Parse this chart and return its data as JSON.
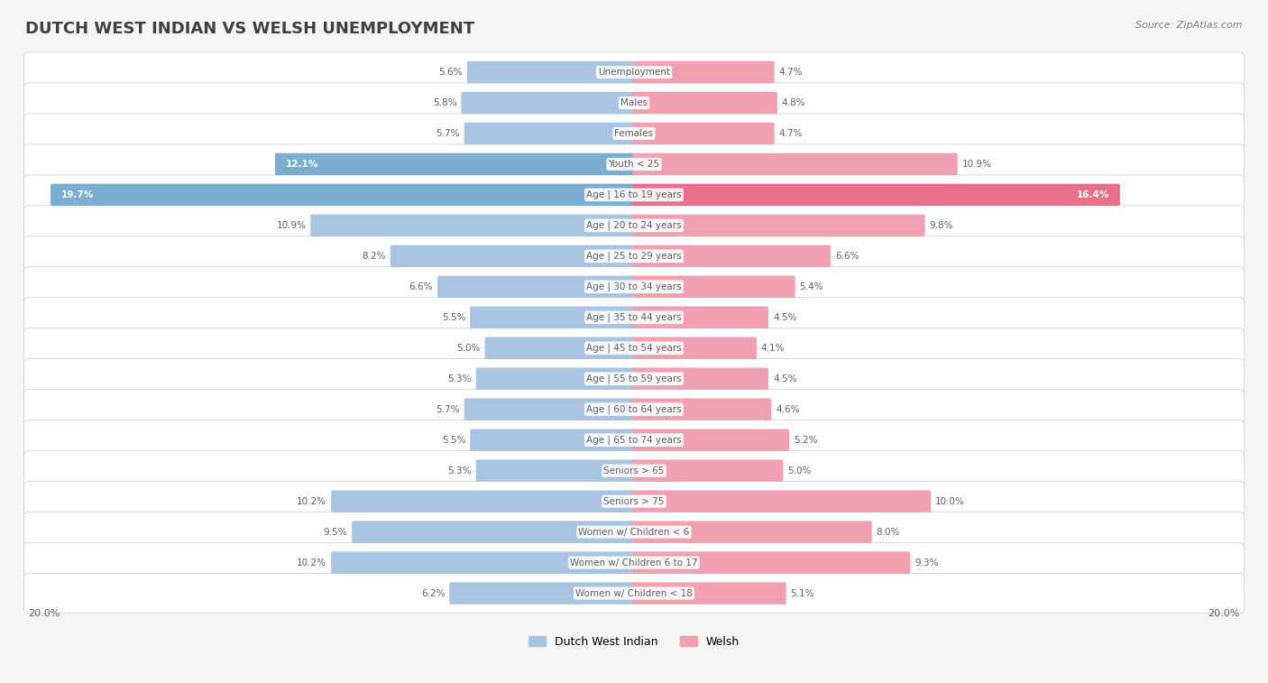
{
  "title": "DUTCH WEST INDIAN VS WELSH UNEMPLOYMENT",
  "source": "Source: ZipAtlas.com",
  "categories": [
    "Unemployment",
    "Males",
    "Females",
    "Youth < 25",
    "Age | 16 to 19 years",
    "Age | 20 to 24 years",
    "Age | 25 to 29 years",
    "Age | 30 to 34 years",
    "Age | 35 to 44 years",
    "Age | 45 to 54 years",
    "Age | 55 to 59 years",
    "Age | 60 to 64 years",
    "Age | 65 to 74 years",
    "Seniors > 65",
    "Seniors > 75",
    "Women w/ Children < 6",
    "Women w/ Children 6 to 17",
    "Women w/ Children < 18"
  ],
  "left_values": [
    5.6,
    5.8,
    5.7,
    12.1,
    19.7,
    10.9,
    8.2,
    6.6,
    5.5,
    5.0,
    5.3,
    5.7,
    5.5,
    5.3,
    10.2,
    9.5,
    10.2,
    6.2
  ],
  "right_values": [
    4.7,
    4.8,
    4.7,
    10.9,
    16.4,
    9.8,
    6.6,
    5.4,
    4.5,
    4.1,
    4.5,
    4.6,
    5.2,
    5.0,
    10.0,
    8.0,
    9.3,
    5.1
  ],
  "left_color": "#a8c4e0",
  "right_color": "#f0a0b0",
  "left_label": "Dutch West Indian",
  "right_label": "Welsh",
  "max_val": 20.0,
  "bg_row_color": "#f0f0f0",
  "bg_row_color2": "#ffffff",
  "title_color": "#404040",
  "source_color": "#808080",
  "value_color": "#606060",
  "label_color": "#606060",
  "highlight_left_color": "#7aadd0",
  "highlight_right_color": "#e8708a"
}
